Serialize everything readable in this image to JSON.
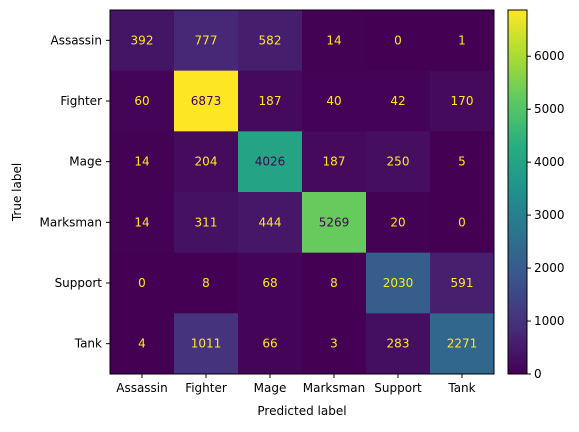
{
  "chart_data": {
    "type": "heatmap",
    "x_categories": [
      "Assassin",
      "Fighter",
      "Mage",
      "Marksman",
      "Support",
      "Tank"
    ],
    "y_categories": [
      "Assassin",
      "Fighter",
      "Mage",
      "Marksman",
      "Support",
      "Tank"
    ],
    "values": [
      [
        392,
        777,
        582,
        14,
        0,
        1
      ],
      [
        60,
        6873,
        187,
        40,
        42,
        170
      ],
      [
        14,
        204,
        4026,
        187,
        250,
        5
      ],
      [
        14,
        311,
        444,
        5269,
        20,
        0
      ],
      [
        0,
        8,
        68,
        8,
        2030,
        591
      ],
      [
        4,
        1011,
        66,
        3,
        283,
        2271
      ]
    ],
    "xlabel": "Predicted label",
    "ylabel": "True label",
    "colormap": "viridis",
    "colorbar": {
      "min": 0,
      "max": 6873,
      "ticks": [
        0,
        1000,
        2000,
        3000,
        4000,
        5000,
        6000
      ]
    },
    "annotation_colors": {
      "on_dark": "#fde725",
      "on_light": "#440154"
    }
  }
}
